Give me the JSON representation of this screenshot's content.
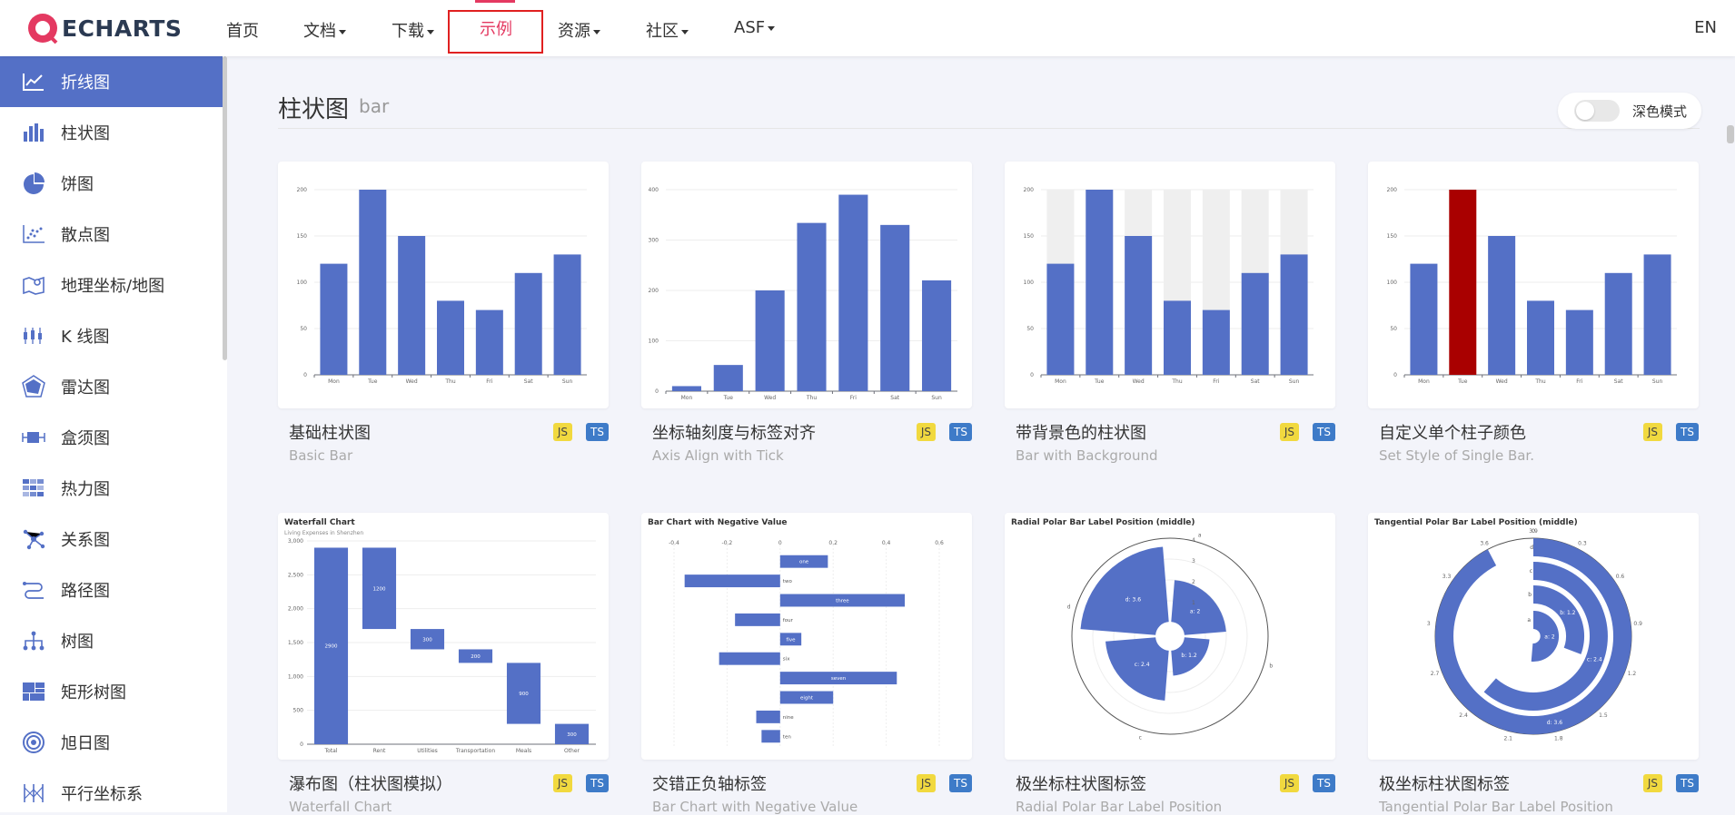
{
  "nav": {
    "logo_text": "ECHARTS",
    "items": [
      {
        "label": "首页",
        "caret": false
      },
      {
        "label": "文档",
        "caret": true
      },
      {
        "label": "下载",
        "caret": true
      },
      {
        "label": "示例",
        "caret": false
      },
      {
        "label": "资源",
        "caret": true
      },
      {
        "label": "社区",
        "caret": true
      },
      {
        "label": "ASF",
        "caret": true
      }
    ],
    "active": "示例",
    "lang": "EN",
    "accent": "#e43961"
  },
  "sidebar": {
    "items": [
      {
        "label": "折线图",
        "icon": "line-chart-icon",
        "active": true
      },
      {
        "label": "柱状图",
        "icon": "bar-chart-icon"
      },
      {
        "label": "饼图",
        "icon": "pie-chart-icon"
      },
      {
        "label": "散点图",
        "icon": "scatter-chart-icon"
      },
      {
        "label": "地理坐标/地图",
        "icon": "map-icon"
      },
      {
        "label": "K 线图",
        "icon": "candlestick-icon"
      },
      {
        "label": "雷达图",
        "icon": "radar-icon"
      },
      {
        "label": "盒须图",
        "icon": "boxplot-icon"
      },
      {
        "label": "热力图",
        "icon": "heatmap-icon"
      },
      {
        "label": "关系图",
        "icon": "graph-icon"
      },
      {
        "label": "路径图",
        "icon": "lines-icon"
      },
      {
        "label": "树图",
        "icon": "tree-icon"
      },
      {
        "label": "矩形树图",
        "icon": "treemap-icon"
      },
      {
        "label": "旭日图",
        "icon": "sunburst-icon"
      },
      {
        "label": "平行坐标系",
        "icon": "parallel-icon"
      }
    ],
    "active_color": "#5470c6"
  },
  "main": {
    "section_title": "柱状图",
    "section_sub": "bar",
    "dark_mode_label": "深色模式",
    "dark_mode_on": false
  },
  "cards": [
    {
      "title": "基础柱状图",
      "subtitle": "Basic Bar",
      "js": "JS",
      "ts": "TS"
    },
    {
      "title": "坐标轴刻度与标签对齐",
      "subtitle": "Axis Align with Tick",
      "js": "JS",
      "ts": "TS"
    },
    {
      "title": "带背景色的柱状图",
      "subtitle": "Bar with Background",
      "js": "JS",
      "ts": "TS"
    },
    {
      "title": "自定义单个柱子颜色",
      "subtitle": "Set Style of Single Bar.",
      "js": "JS",
      "ts": "TS"
    },
    {
      "title": "瀑布图（柱状图模拟）",
      "subtitle": "Waterfall Chart",
      "js": "JS",
      "ts": "TS"
    },
    {
      "title": "交错正负轴标签",
      "subtitle": "Bar Chart with Negative Value",
      "js": "JS",
      "ts": "TS"
    },
    {
      "title": "极坐标柱状图标签",
      "subtitle": "Radial Polar Bar Label Position",
      "js": "JS",
      "ts": "TS"
    },
    {
      "title": "极坐标柱状图标签",
      "subtitle": "Tangential Polar Bar Label Position",
      "js": "JS",
      "ts": "TS"
    }
  ],
  "chart_data": [
    {
      "type": "bar",
      "categories": [
        "Mon",
        "Tue",
        "Wed",
        "Thu",
        "Fri",
        "Sat",
        "Sun"
      ],
      "values": [
        120,
        200,
        150,
        80,
        70,
        110,
        130
      ],
      "ylim": [
        0,
        200
      ],
      "yticks": [
        0,
        50,
        100,
        150,
        200
      ],
      "color": "#5470c6"
    },
    {
      "type": "bar",
      "categories": [
        "Mon",
        "Tue",
        "Wed",
        "Thu",
        "Fri",
        "Sat",
        "Sun"
      ],
      "values": [
        10,
        52,
        200,
        334,
        390,
        330,
        220
      ],
      "ylim": [
        0,
        400
      ],
      "yticks": [
        0,
        100,
        200,
        300,
        400
      ],
      "color": "#5470c6"
    },
    {
      "type": "bar",
      "categories": [
        "Mon",
        "Tue",
        "Wed",
        "Thu",
        "Fri",
        "Sat",
        "Sun"
      ],
      "values": [
        120,
        200,
        150,
        80,
        70,
        110,
        130
      ],
      "ylim": [
        0,
        200
      ],
      "yticks": [
        0,
        50,
        100,
        150,
        200
      ],
      "background": true,
      "color": "#5470c6",
      "bg_color": "#efefef"
    },
    {
      "type": "bar",
      "categories": [
        "Mon",
        "Tue",
        "Wed",
        "Thu",
        "Fri",
        "Sat",
        "Sun"
      ],
      "values": [
        120,
        200,
        150,
        80,
        70,
        110,
        130
      ],
      "ylim": [
        0,
        200
      ],
      "yticks": [
        0,
        50,
        100,
        150,
        200
      ],
      "color": "#5470c6",
      "highlight_index": 1,
      "highlight_color": "#a90000"
    },
    {
      "type": "bar",
      "title": "Waterfall Chart",
      "subtitle": "Living Expenses in Shenzhen",
      "categories": [
        "Total",
        "Rent",
        "Utilities",
        "Transportation",
        "Meals",
        "Other"
      ],
      "bases": [
        0,
        1700,
        1400,
        1200,
        300,
        0
      ],
      "values": [
        2900,
        1200,
        300,
        200,
        900,
        300
      ],
      "ylim": [
        0,
        3000
      ],
      "yticks": [
        "0",
        "500",
        "1,000",
        "1,500",
        "2,000",
        "2,500",
        "3,000"
      ],
      "color": "#5470c6"
    },
    {
      "type": "bar",
      "title": "Bar Chart with Negative Value",
      "categories": [
        "one",
        "two",
        "three",
        "four",
        "five",
        "six",
        "seven",
        "eight",
        "nine",
        "ten"
      ],
      "values": [
        0.18,
        -0.36,
        0.47,
        -0.17,
        0.08,
        -0.23,
        0.44,
        0.2,
        -0.09,
        -0.07
      ],
      "xlim": [
        -0.4,
        0.6
      ],
      "xticks": [
        "-0.4",
        "-0.2",
        "0",
        "0.2",
        "0.4",
        "0.6"
      ],
      "color": "#5470c6"
    },
    {
      "type": "bar",
      "title": "Radial Polar Bar Label Position (middle)",
      "categories": [
        "a",
        "b",
        "c",
        "d"
      ],
      "values": [
        2,
        1.2,
        2.4,
        3.6
      ],
      "labels": [
        "a: 2",
        "b: 1.2",
        "c: 2.4",
        "d: 3.6"
      ],
      "radius_ticks": [
        "1",
        "2",
        "3",
        "4"
      ],
      "color": "#5470c6"
    },
    {
      "type": "bar",
      "title": "Tangential Polar Bar Label Position (middle)",
      "categories": [
        "a",
        "b",
        "c",
        "d"
      ],
      "values": [
        2,
        1.2,
        2.4,
        3.6
      ],
      "labels": [
        "a: 2",
        "b: 1.2",
        "c: 2.4",
        "d: 3.6"
      ],
      "angle_ticks": [
        "0",
        "0.3",
        "0.6",
        "0.9",
        "1.2",
        "1.5",
        "1.8",
        "2.1",
        "2.4",
        "2.7",
        "3",
        "3.3",
        "3.6",
        "3.9"
      ],
      "color": "#5470c6"
    }
  ]
}
